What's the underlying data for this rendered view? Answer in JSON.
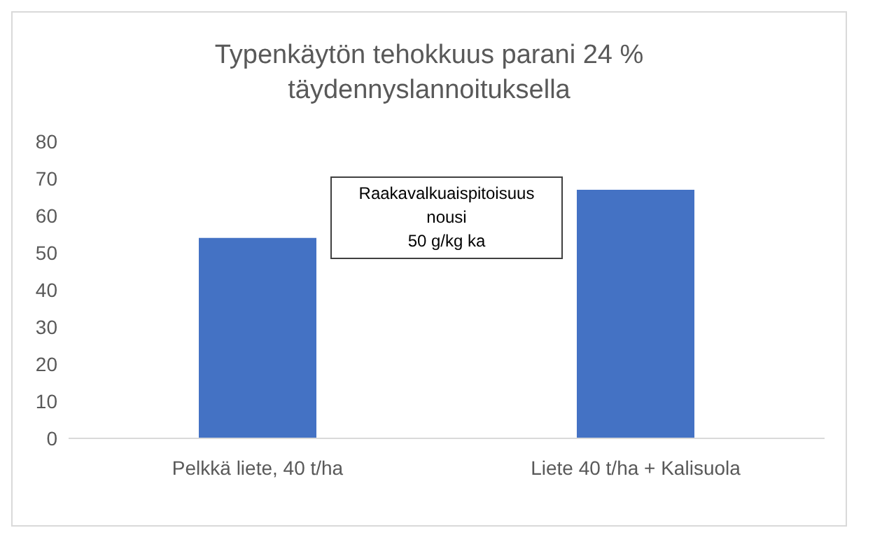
{
  "chart_data": {
    "type": "bar",
    "title": "Typenkäytön tehokkuus parani 24 %\ntäydennyslannoituksella",
    "categories": [
      "Pelkkä liete, 40 t/ha",
      "Liete 40 t/ha + Kalisuola"
    ],
    "values": [
      54,
      67
    ],
    "color": "#4472c4",
    "ylim": [
      0,
      80
    ],
    "yticks": [
      0,
      10,
      20,
      30,
      40,
      50,
      60,
      70,
      80
    ],
    "grid": false,
    "annotations": [
      "Raakavalkuaispitoisuus\nnousi\n50 g/kg ka"
    ]
  }
}
